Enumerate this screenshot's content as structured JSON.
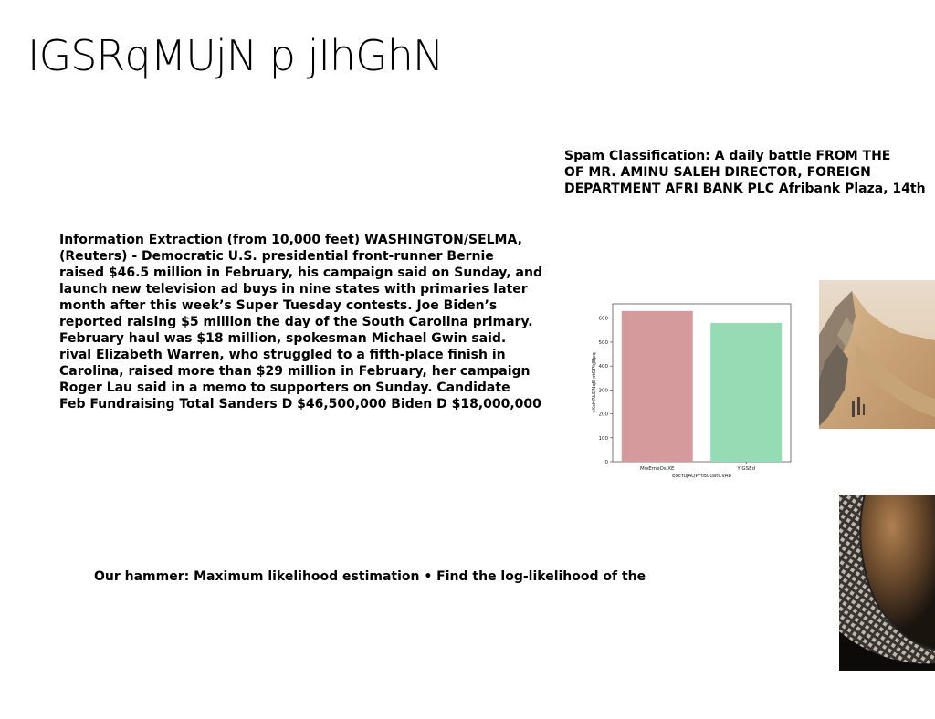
{
  "slide": {
    "title": "IGSRqMUjN p jIhGhN"
  },
  "spam_block": {
    "lines": [
      "Spam Classification: A daily battle FROM THE",
      "OF MR. AMINU SALEH DIRECTOR, FOREIGN",
      "DEPARTMENT AFRI BANK PLC Afribank Plaza, 14th"
    ]
  },
  "info_block": {
    "lines": [
      "Information Extraction (from 10,000 feet) WASHINGTON/SELMA,",
      "(Reuters) - Democratic U.S. presidential front-runner Bernie",
      "raised $46.5 million in February, his campaign said on Sunday, and",
      "launch new television ad buys in nine states with primaries later",
      "month after this week’s Super Tuesday contests. Joe Biden’s",
      "reported raising $5 million the day of the South Carolina primary.",
      "February haul was $18 million, spokesman Michael Gwin said.",
      "rival Elizabeth Warren, who struggled to a fifth-place finish in",
      "Carolina, raised more than $29 million in February, her campaign",
      "Roger Lau said in a memo to supporters on Sunday. Candidate",
      "Feb Fundraising Total Sanders D $46,500,000 Biden D $18,000,000"
    ]
  },
  "hammer_block": {
    "text": "Our hammer: Maximum likelihood estimation • Find the log-likelihood of the"
  },
  "chart_data": {
    "type": "bar",
    "categories": [
      "MwEmeOsIXE",
      "YIGSEd"
    ],
    "values": [
      630,
      580
    ],
    "colors": [
      "#d49a9c",
      "#95dcb4"
    ],
    "xlabel": "bxcYujAQPFtBuuatCVAb",
    "ylabel": "cXcHRLDNqE xtOPkJBpq",
    "ylim": [
      0,
      660
    ],
    "yticks": [
      0,
      100,
      200,
      300,
      400,
      500,
      600
    ],
    "grid": false
  },
  "images": {
    "desert": "desert-landscape-photo",
    "tunnel": "curved-lattice-tunnel-photo"
  }
}
